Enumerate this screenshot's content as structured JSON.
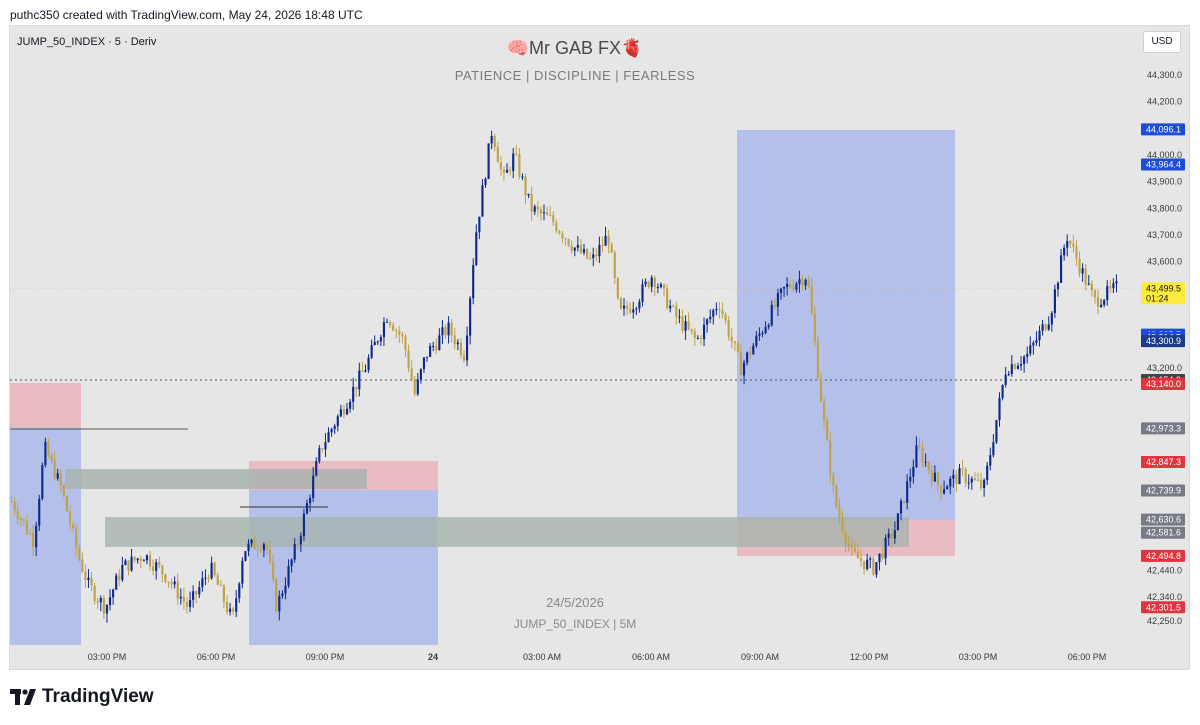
{
  "header": {
    "created_by": "puthc350 created with TradingView.com, May 24, 2026 18:48 UTC"
  },
  "chart_header": {
    "symbol_line": "JUMP_50_INDEX · 5 · Deriv",
    "title": "🧠Mr GAB FX🫀",
    "subtitle": "PATIENCE  |  DISCIPLINE  |  FEARLESS",
    "currency_button": "USD"
  },
  "watermark": {
    "date": "24/5/2026",
    "symbol": "JUMP_50_INDEX | 5M"
  },
  "footer": {
    "logo_text": "TradingView"
  },
  "colors": {
    "background": "#e6e6e6",
    "candle_up": "#0d2a8a",
    "candle_down": "#bfa34a",
    "zone_blue": "#aab8ea",
    "zone_red": "#e8b4bb",
    "zone_gray": "#a8b4ae",
    "tag_blue": "#1e4bd8",
    "tag_red": "#e0343f",
    "tag_gray": "#787b86",
    "tag_yellow": "#ffeb3b",
    "tag_navy": "#1c3a8a"
  },
  "chart_data": {
    "type": "candlestick",
    "symbol": "JUMP_50_INDEX",
    "timeframe": "5",
    "ylim": [
      42200,
      44400
    ],
    "y_ticks": [
      "44,300.0",
      "44,200.0",
      "44,000.0",
      "43,900.0",
      "43,800.0",
      "43,700.0",
      "43,600.0",
      "43,200.0",
      "42,440.0",
      "42,340.0",
      "42,250.0"
    ],
    "x_ticks": [
      "03:00 PM",
      "06:00 PM",
      "09:00 PM",
      "24",
      "03:00 AM",
      "06:00 AM",
      "09:00 AM",
      "12:00 PM",
      "03:00 PM",
      "06:00 PM"
    ],
    "path_points": [
      [
        0,
        42700
      ],
      [
        0.02,
        42550
      ],
      [
        0.03,
        42900
      ],
      [
        0.045,
        42750
      ],
      [
        0.06,
        42500
      ],
      [
        0.07,
        42380
      ],
      [
        0.085,
        42300
      ],
      [
        0.1,
        42450
      ],
      [
        0.12,
        42500
      ],
      [
        0.14,
        42420
      ],
      [
        0.16,
        42300
      ],
      [
        0.18,
        42450
      ],
      [
        0.2,
        42250
      ],
      [
        0.21,
        42520
      ],
      [
        0.23,
        42550
      ],
      [
        0.24,
        42300
      ],
      [
        0.26,
        42560
      ],
      [
        0.28,
        42900
      ],
      [
        0.3,
        43050
      ],
      [
        0.32,
        43200
      ],
      [
        0.34,
        43400
      ],
      [
        0.355,
        43300
      ],
      [
        0.365,
        43100
      ],
      [
        0.375,
        43250
      ],
      [
        0.395,
        43350
      ],
      [
        0.41,
        43250
      ],
      [
        0.42,
        43700
      ],
      [
        0.435,
        44100
      ],
      [
        0.445,
        43900
      ],
      [
        0.455,
        44000
      ],
      [
        0.47,
        43800
      ],
      [
        0.49,
        43750
      ],
      [
        0.51,
        43650
      ],
      [
        0.525,
        43600
      ],
      [
        0.54,
        43700
      ],
      [
        0.55,
        43400
      ],
      [
        0.565,
        43450
      ],
      [
        0.58,
        43550
      ],
      [
        0.6,
        43400
      ],
      [
        0.62,
        43300
      ],
      [
        0.64,
        43450
      ],
      [
        0.66,
        43200
      ],
      [
        0.68,
        43350
      ],
      [
        0.7,
        43500
      ],
      [
        0.72,
        43550
      ],
      [
        0.735,
        43000
      ],
      [
        0.745,
        42700
      ],
      [
        0.76,
        42500
      ],
      [
        0.78,
        42450
      ],
      [
        0.8,
        42600
      ],
      [
        0.82,
        42900
      ],
      [
        0.84,
        42750
      ],
      [
        0.86,
        42800
      ],
      [
        0.88,
        42750
      ],
      [
        0.9,
        43200
      ],
      [
        0.92,
        43250
      ],
      [
        0.94,
        43400
      ],
      [
        0.955,
        43700
      ],
      [
        0.965,
        43600
      ],
      [
        0.98,
        43450
      ],
      [
        1.0,
        43500
      ]
    ],
    "path_points_2": [
      [
        0,
        43500
      ],
      [
        0.04,
        43450
      ],
      [
        0.08,
        43380
      ],
      [
        0.12,
        43300
      ],
      [
        0.16,
        43350
      ],
      [
        0.2,
        43250
      ],
      [
        0.24,
        43450
      ],
      [
        0.28,
        43550
      ],
      [
        0.32,
        43500
      ],
      [
        0.36,
        43450
      ],
      [
        0.4,
        43550
      ],
      [
        0.44,
        43650
      ],
      [
        0.48,
        43800
      ],
      [
        0.5,
        43500
      ]
    ],
    "price_tags": [
      {
        "label": "44,096.1",
        "price": 44096.1,
        "color": "#1e4bd8"
      },
      {
        "label": "43,964.4",
        "price": 43964.4,
        "color": "#1e4bd8"
      },
      {
        "label": "43,499.5",
        "price": 43499.5,
        "color": "#ffeb3b",
        "dark_text": true,
        "sub": "01:24"
      },
      {
        "label": "43,325.5",
        "price": 43325.5,
        "color": "#1e4bd8"
      },
      {
        "label": "43,314.5",
        "price": 43314.5,
        "color": "#1e4bd8"
      },
      {
        "label": "43,300.9",
        "price": 43300.9,
        "color": "#1c3a8a"
      },
      {
        "label": "43,154.9",
        "price": 43154.9,
        "color": "#444444"
      },
      {
        "label": "43,140.0",
        "price": 43140.0,
        "color": "#e0343f"
      },
      {
        "label": "42,973.3",
        "price": 42973.3,
        "color": "#787b86"
      },
      {
        "label": "42,847.3",
        "price": 42847.3,
        "color": "#e0343f"
      },
      {
        "label": "42,739.9",
        "price": 42739.9,
        "color": "#787b86"
      },
      {
        "label": "42,630.6",
        "price": 42630.6,
        "color": "#787b86"
      },
      {
        "label": "42,581.6",
        "price": 42581.6,
        "color": "#787b86"
      },
      {
        "label": "42,494.8",
        "price": 42494.8,
        "color": "#e0343f"
      },
      {
        "label": "42,301.5",
        "price": 42301.5,
        "color": "#e0343f"
      }
    ],
    "current_price": 43499.5,
    "dotted_level": 43154.9
  }
}
